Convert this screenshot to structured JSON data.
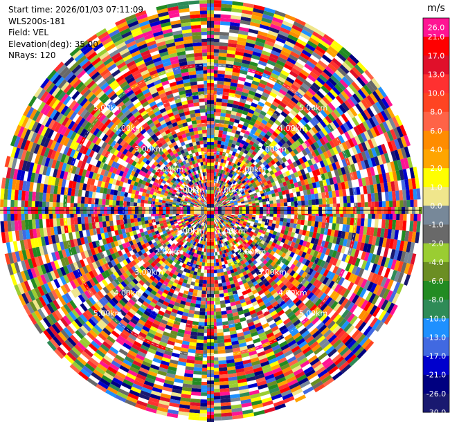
{
  "header": {
    "start_time": "Start time: 2026/01/03 07:11:09",
    "instrument": "WLS200s-181",
    "field": "Field: VEL",
    "elevation": "Elevation(deg): 35.00",
    "nrays": "NRays: 120"
  },
  "colorbar": {
    "unit": "m/s",
    "ticks": [
      "26.0",
      "21.0",
      "17.0",
      "13.0",
      "10.0",
      "8.0",
      "6.0",
      "4.0",
      "2.0",
      "1.0",
      "0.0",
      "-1.0",
      "-2.0",
      "-4.0",
      "-6.0",
      "-8.0",
      "-10.0",
      "-13.0",
      "-17.0",
      "-21.0",
      "-26.0",
      "-30.0"
    ],
    "colors": [
      "#ff1493",
      "#ff0000",
      "#e0102a",
      "#ff3030",
      "#ff4422",
      "#ff6347",
      "#ff8c00",
      "#ffa500",
      "#ffff00",
      "#f0e68c",
      "#778899",
      "#696969",
      "#9acd32",
      "#6b8e23",
      "#228b22",
      "#2e8b57",
      "#1e90ff",
      "#4169e1",
      "#0000cd",
      "#000080",
      "#191970"
    ]
  },
  "chart_data": {
    "type": "heatmap",
    "projection": "polar",
    "field": "VEL",
    "units": "m/s",
    "nrays": 120,
    "elevation_deg": 35.0,
    "vmin": -30.0,
    "vmax": 26.0,
    "range_rings_km": [
      1.0,
      2.0,
      3.0,
      4.0,
      5.0
    ],
    "ring_labels": [
      "1.00km",
      "2.00km",
      "3.00km",
      "4.00km",
      "5.00km"
    ],
    "values_note": "dense noisy velocity field across all rays and range gates"
  }
}
